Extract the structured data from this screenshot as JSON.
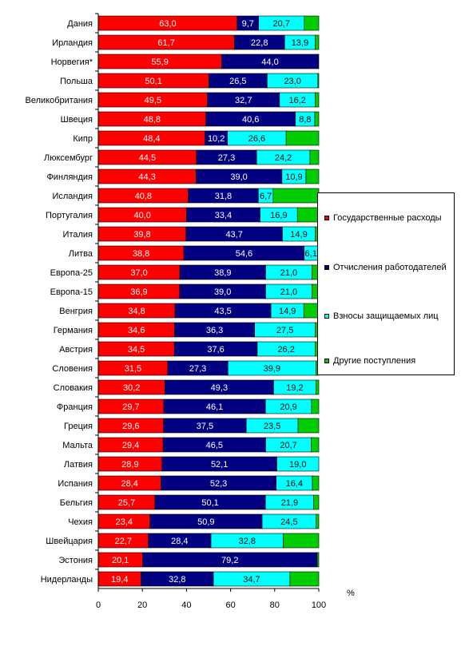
{
  "chart_data": {
    "type": "bar",
    "orientation": "horizontal",
    "stacked": true,
    "categories": [
      "Дания",
      "Ирландия",
      "Норвегия*",
      "Польша",
      "Великобритания",
      "Швеция",
      "Кипр",
      "Люксембург",
      "Финляндия",
      "Исландия",
      "Португалия",
      "Италия",
      "Литва",
      "Европа-25",
      "Европа-15",
      "Венгрия",
      "Германия",
      "Австрия",
      "Словения",
      "Словакия",
      "Франция",
      "Греция",
      "Мальта",
      "Латвия",
      "Испания",
      "Бельгия",
      "Чехия",
      "Швейцария",
      "Эстония",
      "Нидерланды"
    ],
    "series": [
      {
        "name": "Государственные расходы",
        "color": "#ff0000",
        "values": [
          63.0,
          61.7,
          55.9,
          50.1,
          49.5,
          48.8,
          48.4,
          44.5,
          44.3,
          40.8,
          40.0,
          39.8,
          38.8,
          37.0,
          36.9,
          34.8,
          34.6,
          34.5,
          31.5,
          30.2,
          29.7,
          29.6,
          29.4,
          28.9,
          28.4,
          25.7,
          23.4,
          22.7,
          20.1,
          19.4
        ],
        "labels": [
          "63,0",
          "61,7",
          "55,9",
          "50,1",
          "49,5",
          "48,8",
          "48,4",
          "44,5",
          "44,3",
          "40,8",
          "40,0",
          "39,8",
          "38,8",
          "37,0",
          "36,9",
          "34,8",
          "34,6",
          "34,5",
          "31,5",
          "30,2",
          "29,7",
          "29,6",
          "29,4",
          "28,9",
          "28,4",
          "25,7",
          "23,4",
          "22,7",
          "20,1",
          "19,4"
        ]
      },
      {
        "name": "Отчисления работодателей",
        "color": "#000080",
        "values": [
          9.7,
          22.8,
          44.0,
          26.5,
          32.7,
          40.6,
          10.2,
          27.3,
          39.0,
          31.8,
          33.4,
          43.7,
          54.6,
          38.9,
          39.0,
          43.5,
          36.3,
          37.6,
          27.3,
          49.3,
          46.1,
          37.5,
          46.5,
          52.1,
          52.3,
          50.1,
          50.9,
          28.4,
          79.2,
          32.8
        ],
        "labels": [
          "9,7",
          "22,8",
          "44,0",
          "26,5",
          "32,7",
          "40,6",
          "10,2",
          "27,3",
          "39,0",
          "31,8",
          "33,4",
          "43,7",
          "54,6",
          "38,9",
          "39,0",
          "43,5",
          "36,3",
          "37,6",
          "27,3",
          "49,3",
          "46,1",
          "37,5",
          "46,5",
          "52,1",
          "52,3",
          "50,1",
          "50,9",
          "28,4",
          "79,2",
          "32,8"
        ]
      },
      {
        "name": "Взносы защищаемых лиц",
        "color": "#00ffff",
        "values": [
          20.7,
          13.9,
          0,
          23.0,
          16.2,
          8.8,
          26.6,
          24.2,
          10.9,
          6.7,
          16.9,
          14.9,
          6.1,
          21.0,
          21.0,
          14.9,
          27.5,
          26.2,
          39.9,
          19.2,
          20.9,
          23.5,
          20.7,
          19.0,
          16.4,
          21.9,
          24.5,
          32.8,
          0,
          34.7
        ],
        "labels": [
          "20,7",
          "13,9",
          "",
          "23,0",
          "16,2",
          "8,8",
          "26,6",
          "24,2",
          "10,9",
          "6,7",
          "16,9",
          "14,9",
          "6,1",
          "21,0",
          "21,0",
          "14,9",
          "27,5",
          "26,2",
          "39,9",
          "19,2",
          "20,9",
          "23,5",
          "20,7",
          "19,0",
          "16,4",
          "21,9",
          "24,5",
          "32,8",
          "",
          "34,7"
        ]
      },
      {
        "name": "Другие поступления",
        "color": "#00cc00",
        "values": [
          6.6,
          1.6,
          0.1,
          0.4,
          1.6,
          1.8,
          14.8,
          4.0,
          5.8,
          20.7,
          9.7,
          1.6,
          0.5,
          3.1,
          3.1,
          6.8,
          1.6,
          1.7,
          1.3,
          1.3,
          3.3,
          9.4,
          3.4,
          0,
          2.9,
          2.3,
          1.2,
          16.1,
          0.7,
          13.1
        ],
        "labels": [
          "",
          "",
          "",
          "",
          "",
          "",
          "",
          "",
          "",
          "",
          "",
          "",
          "",
          "",
          "",
          "",
          "",
          "",
          "",
          "",
          "",
          "",
          "",
          "",
          "",
          "",
          "",
          "",
          "",
          ""
        ]
      }
    ],
    "xlim": [
      0,
      100
    ],
    "xticks": [
      "0",
      "20",
      "40",
      "60",
      "80",
      "100"
    ],
    "unit_label": "%",
    "legend_position": "right"
  }
}
